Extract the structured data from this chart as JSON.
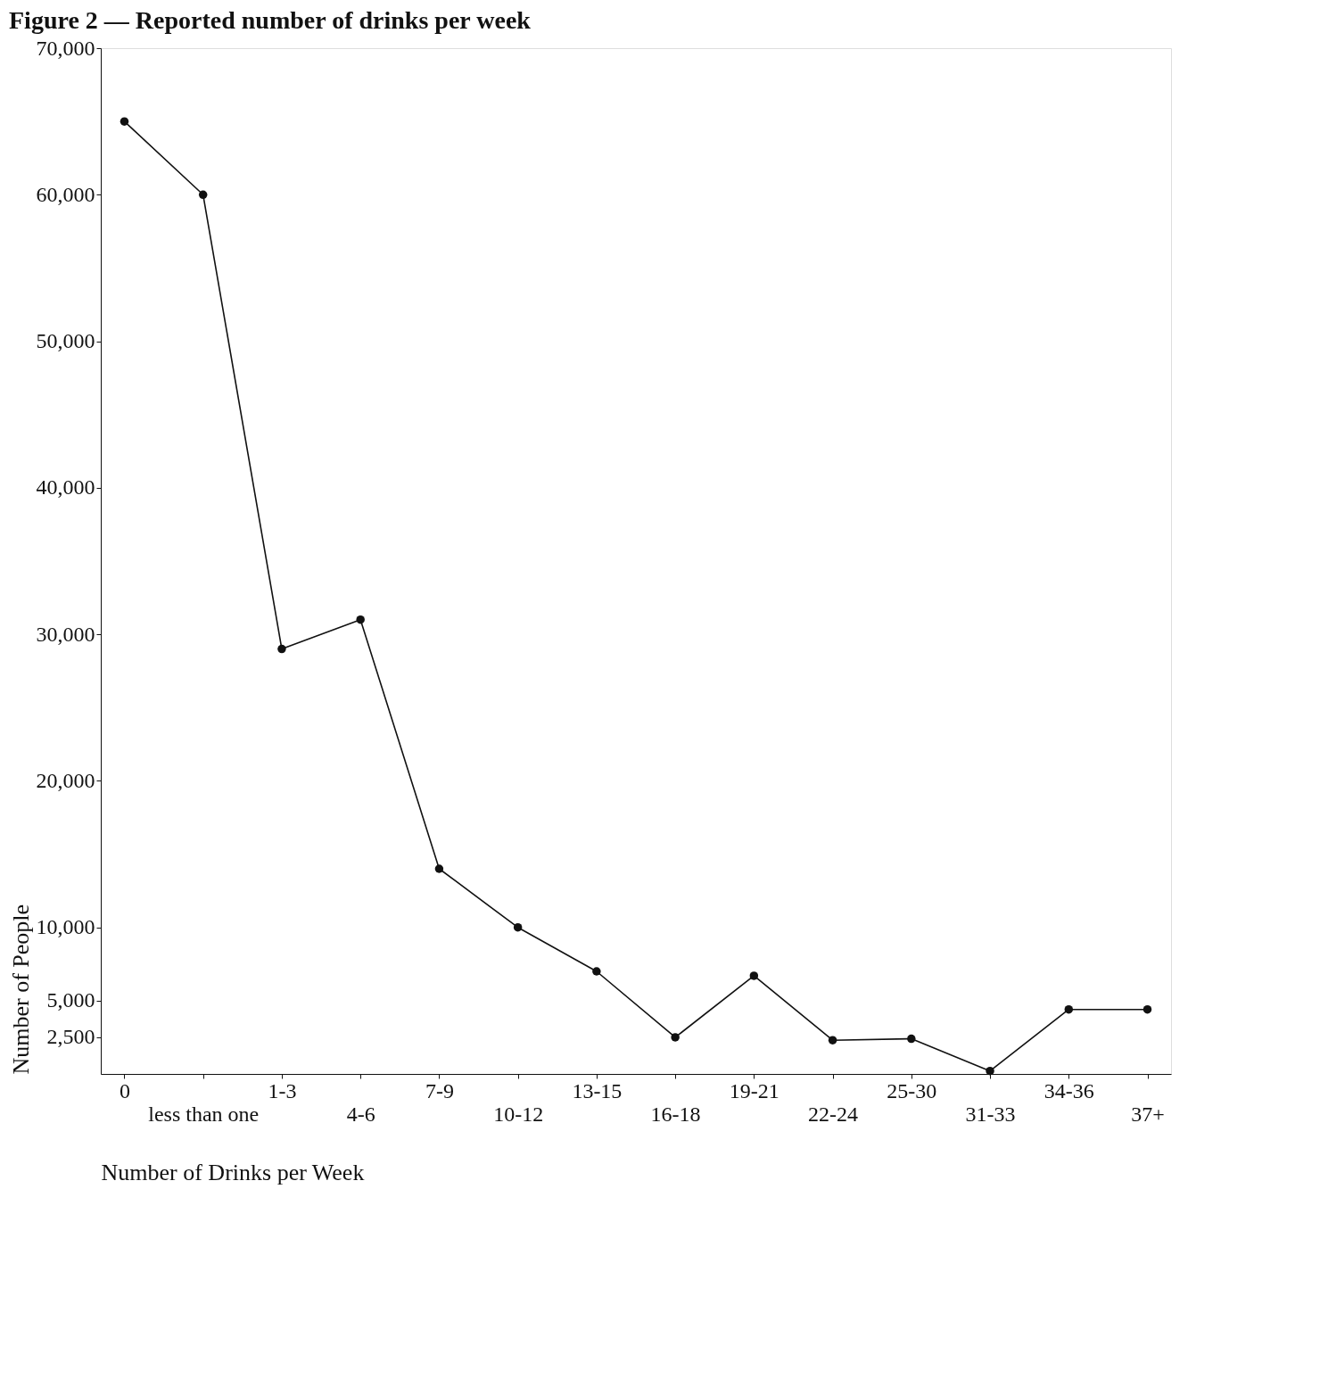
{
  "chart_data": {
    "type": "line",
    "title": "Figure 2 — Reported number of drinks per week",
    "xlabel": "Number of Drinks per Week",
    "ylabel": "Number of People",
    "categories": [
      "0",
      "less than one",
      "1-3",
      "4-6",
      "7-9",
      "10-12",
      "13-15",
      "16-18",
      "19-21",
      "22-24",
      "25-30",
      "31-33",
      "34-36",
      "37+"
    ],
    "series": [
      {
        "color": "#111111",
        "values": [
          65000,
          60000,
          29000,
          31000,
          14000,
          10000,
          7000,
          2500,
          6700,
          2300,
          2400,
          200,
          4400,
          4400
        ]
      }
    ],
    "ylim": [
      0,
      70000
    ],
    "yticks": [
      {
        "value": 2500,
        "label": "2,500"
      },
      {
        "value": 5000,
        "label": "5,000"
      },
      {
        "value": 10000,
        "label": "10,000"
      },
      {
        "value": 20000,
        "label": "20,000"
      },
      {
        "value": 30000,
        "label": "30,000"
      },
      {
        "value": 40000,
        "label": "40,000"
      },
      {
        "value": 50000,
        "label": "50,000"
      },
      {
        "value": 60000,
        "label": "60,000"
      },
      {
        "value": 70000,
        "label": "70,000"
      }
    ],
    "marker": "circle",
    "line_style": "solid",
    "grid": false
  }
}
